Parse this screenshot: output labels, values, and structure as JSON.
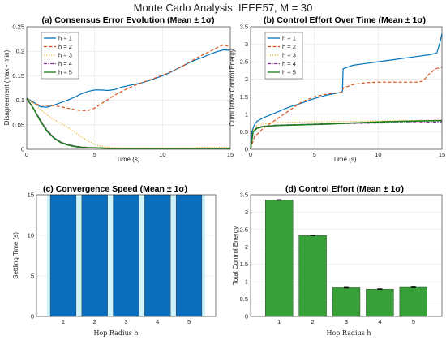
{
  "suptitle": "Monte Carlo Analysis: IEEE57, M = 30",
  "colors": {
    "h1": "#0072bd",
    "h2": "#d95319",
    "h3": "#edb120",
    "h4": "#7e2f8e",
    "h5": "#1a7a1a",
    "bar_blue": "#0a6ebd",
    "bar_light": "#cff4fb",
    "bar_green": "#38a038"
  },
  "chart_data": [
    {
      "type": "line",
      "title": "(a) Consensus Error Evolution (Mean ± 1σ)",
      "xlabel": "Time (s)",
      "ylabel": "Disagreement (max - min)",
      "xlim": [
        0,
        15
      ],
      "ylim": [
        0,
        0.25
      ],
      "xticks": [
        "0",
        "5",
        "10",
        "15"
      ],
      "yticks": [
        "0",
        "0.05",
        "0.1",
        "0.15",
        "0.2",
        "0.25"
      ],
      "grid": true,
      "legend_position": "top-left",
      "series": [
        {
          "name": "h = 1",
          "style": "solid",
          "x": [
            0,
            0.5,
            1,
            1.5,
            2,
            2.5,
            3,
            3.5,
            4,
            4.5,
            5,
            5.5,
            6,
            6.5,
            7,
            7.5,
            8,
            8.5,
            9,
            9.5,
            10,
            10.5,
            11,
            11.5,
            12,
            12.5,
            13,
            13.5,
            14,
            14.5,
            15
          ],
          "y": [
            0.104,
            0.096,
            0.087,
            0.086,
            0.09,
            0.095,
            0.1,
            0.106,
            0.113,
            0.118,
            0.121,
            0.121,
            0.12,
            0.122,
            0.127,
            0.13,
            0.133,
            0.136,
            0.14,
            0.145,
            0.15,
            0.156,
            0.163,
            0.17,
            0.177,
            0.183,
            0.188,
            0.194,
            0.199,
            0.203,
            0.202
          ]
        },
        {
          "name": "h = 2",
          "style": "dashed",
          "x": [
            0,
            0.5,
            1,
            1.5,
            2,
            2.5,
            3,
            3.5,
            4,
            4.5,
            5,
            5.5,
            6,
            6.5,
            7,
            7.5,
            8,
            8.5,
            9,
            9.5,
            10,
            10.5,
            11,
            11.5,
            12,
            12.5,
            13,
            13.5,
            14,
            14.5,
            15
          ],
          "y": [
            0.104,
            0.094,
            0.09,
            0.089,
            0.089,
            0.087,
            0.084,
            0.081,
            0.079,
            0.079,
            0.084,
            0.093,
            0.102,
            0.111,
            0.118,
            0.125,
            0.131,
            0.136,
            0.141,
            0.146,
            0.151,
            0.157,
            0.163,
            0.17,
            0.178,
            0.186,
            0.193,
            0.2,
            0.207,
            0.213,
            0.209
          ]
        },
        {
          "name": "h = 3",
          "style": "dotted",
          "x": [
            0,
            0.5,
            1,
            1.5,
            2,
            2.5,
            3,
            3.5,
            4,
            4.5,
            5,
            5.5,
            6,
            7,
            8,
            9,
            10,
            11,
            12,
            13,
            14,
            15
          ],
          "y": [
            0.104,
            0.094,
            0.082,
            0.07,
            0.06,
            0.053,
            0.045,
            0.036,
            0.026,
            0.017,
            0.01,
            0.006,
            0.004,
            0.003,
            0.003,
            0.003,
            0.003,
            0.003,
            0.003,
            0.004,
            0.004,
            0.004
          ]
        },
        {
          "name": "h = 4",
          "style": "dashdot",
          "x": [
            0,
            0.5,
            1,
            1.5,
            2,
            2.5,
            3,
            3.5,
            4,
            4.5,
            5,
            6,
            7,
            8,
            9,
            10,
            11,
            12,
            13,
            14,
            15
          ],
          "y": [
            0.104,
            0.084,
            0.06,
            0.039,
            0.024,
            0.015,
            0.01,
            0.007,
            0.005,
            0.004,
            0.003,
            0.002,
            0.002,
            0.002,
            0.002,
            0.002,
            0.002,
            0.002,
            0.002,
            0.002,
            0.002
          ]
        },
        {
          "name": "h = 5",
          "style": "solid",
          "x": [
            0,
            0.5,
            1,
            1.5,
            2,
            2.5,
            3,
            3.5,
            4,
            4.5,
            5,
            6,
            7,
            8,
            9,
            10,
            11,
            12,
            13,
            14,
            15
          ],
          "y": [
            0.104,
            0.083,
            0.058,
            0.037,
            0.023,
            0.014,
            0.009,
            0.006,
            0.004,
            0.003,
            0.003,
            0.002,
            0.002,
            0.002,
            0.002,
            0.002,
            0.002,
            0.002,
            0.002,
            0.002,
            0.002
          ]
        }
      ]
    },
    {
      "type": "line",
      "title": "(b) Control Effort Over Time (Mean ± 1σ)",
      "xlabel": "Time (s)",
      "ylabel": "Cumulative Control Energy",
      "xlim": [
        0,
        15
      ],
      "ylim": [
        0,
        3.5
      ],
      "xticks": [
        "0",
        "5",
        "10",
        "15"
      ],
      "yticks": [
        "0",
        "0.5",
        "1",
        "1.5",
        "2",
        "2.5",
        "3",
        "3.5"
      ],
      "grid": true,
      "legend_position": "top-left",
      "series": [
        {
          "name": "h = 1",
          "style": "solid",
          "x": [
            0,
            0.1,
            0.3,
            0.5,
            1,
            2,
            3,
            4,
            5,
            6,
            7,
            7.2,
            7.25,
            8,
            9,
            10,
            11,
            12,
            13,
            14,
            14.6,
            14.8,
            15
          ],
          "y": [
            0,
            0.5,
            0.7,
            0.8,
            0.9,
            1.05,
            1.2,
            1.32,
            1.45,
            1.55,
            1.62,
            1.65,
            2.3,
            2.4,
            2.45,
            2.5,
            2.55,
            2.6,
            2.65,
            2.7,
            2.75,
            3.0,
            3.3
          ]
        },
        {
          "name": "h = 2",
          "style": "dashed",
          "x": [
            0,
            0.3,
            1,
            2,
            3,
            4,
            5,
            6,
            7,
            7.2,
            7.25,
            8,
            9,
            10,
            11,
            12,
            13,
            13.5,
            14,
            14.5,
            15
          ],
          "y": [
            0,
            0.35,
            0.6,
            0.85,
            1.1,
            1.35,
            1.5,
            1.58,
            1.62,
            1.65,
            1.75,
            1.85,
            1.9,
            1.92,
            1.92,
            1.92,
            1.92,
            1.95,
            2.15,
            2.3,
            2.35
          ]
        },
        {
          "name": "h = 3",
          "style": "dotted",
          "x": [
            0,
            0.2,
            0.5,
            1,
            2,
            4,
            6,
            8,
            10,
            12,
            15
          ],
          "y": [
            0,
            0.55,
            0.68,
            0.72,
            0.76,
            0.78,
            0.79,
            0.8,
            0.81,
            0.82,
            0.83
          ]
        },
        {
          "name": "h = 4",
          "style": "dashdot",
          "x": [
            0,
            0.2,
            0.5,
            1,
            2,
            4,
            6,
            8,
            10,
            12,
            15
          ],
          "y": [
            0,
            0.5,
            0.62,
            0.66,
            0.69,
            0.71,
            0.73,
            0.74,
            0.75,
            0.76,
            0.78
          ]
        },
        {
          "name": "h = 5",
          "style": "solid",
          "x": [
            0,
            0.2,
            0.5,
            1,
            2,
            4,
            6,
            8,
            10,
            12,
            15
          ],
          "y": [
            0,
            0.5,
            0.6,
            0.65,
            0.68,
            0.7,
            0.72,
            0.75,
            0.78,
            0.8,
            0.82
          ]
        }
      ]
    },
    {
      "type": "bar",
      "title": "(c) Convergence Speed (Mean ± 1σ)",
      "xlabel": "Hop Radius h",
      "ylabel": "Settling Time (s)",
      "categories": [
        "1",
        "2",
        "3",
        "4",
        "5"
      ],
      "values": [
        15,
        15,
        15,
        15,
        15
      ],
      "ylim": [
        0,
        15
      ],
      "yticks": [
        "0",
        "5",
        "10",
        "15"
      ],
      "grid": true
    },
    {
      "type": "bar",
      "title": "(d) Control Effort (Mean ± 1σ)",
      "xlabel": "Hop Radius h",
      "ylabel": "Total Control Energy",
      "categories": [
        "1",
        "2",
        "3",
        "4",
        "5"
      ],
      "values": [
        3.35,
        2.33,
        0.83,
        0.79,
        0.84
      ],
      "errors": [
        0.01,
        0.01,
        0.01,
        0.01,
        0.01
      ],
      "ylim": [
        0,
        3.5
      ],
      "yticks": [
        "0",
        "0.5",
        "1",
        "1.5",
        "2",
        "2.5",
        "3",
        "3.5"
      ],
      "grid": true
    }
  ]
}
